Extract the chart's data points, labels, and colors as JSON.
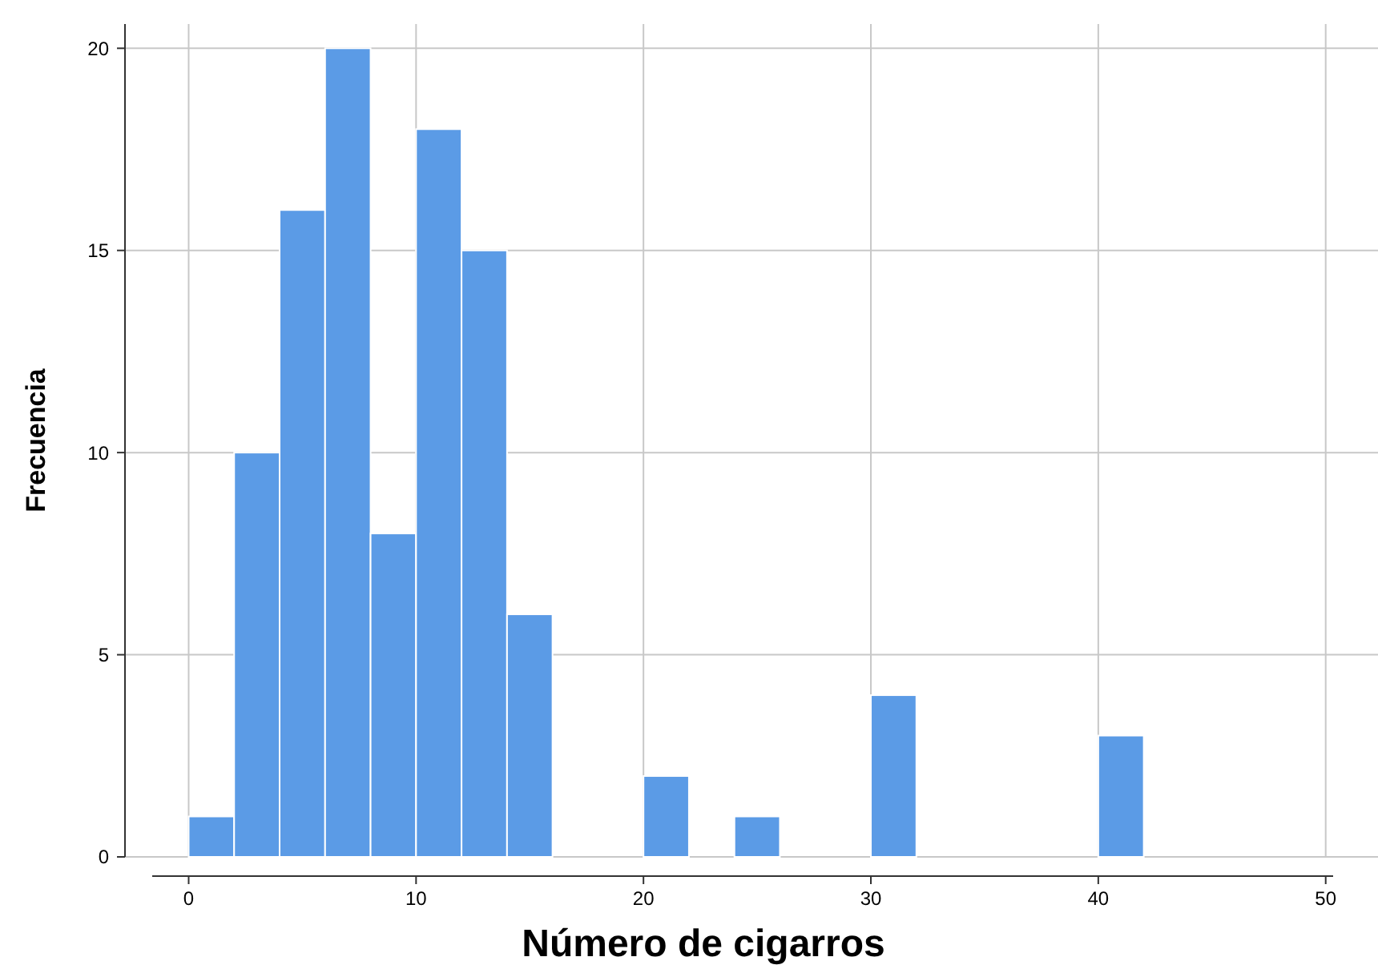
{
  "chart_data": {
    "type": "histogram",
    "xlabel": "Número de cigarros",
    "ylabel": "Frecuencia",
    "bins": [
      0,
      2,
      4,
      6,
      8,
      10,
      12,
      14,
      16,
      18,
      20,
      22,
      24,
      26,
      28,
      30,
      32,
      34,
      36,
      38,
      40,
      42
    ],
    "values": [
      1,
      10,
      16,
      20,
      8,
      18,
      15,
      6,
      0,
      0,
      2,
      0,
      1,
      0,
      0,
      4,
      0,
      0,
      0,
      0,
      3
    ],
    "color": "#5b9be6",
    "xlim": [
      -2.8,
      52.3
    ],
    "xticks": [
      0,
      10,
      20,
      30,
      40,
      50
    ],
    "ylim": [
      0,
      20.6
    ],
    "yticks": [
      0,
      5,
      10,
      15,
      20
    ],
    "grid": true
  }
}
